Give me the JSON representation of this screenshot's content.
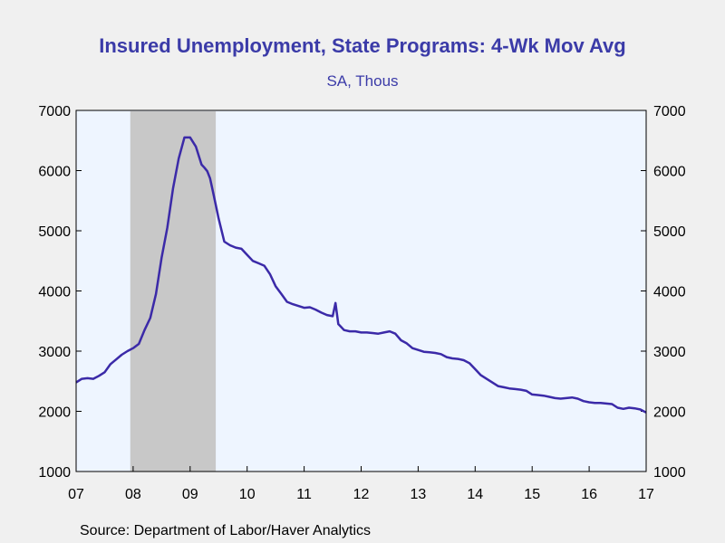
{
  "chart_data": {
    "type": "line",
    "title": "Insured Unemployment, State Programs: 4-Wk Mov Avg",
    "subtitle": "SA, Thous",
    "source": "Source:  Department of Labor/Haver Analytics",
    "x_ticks": [
      "07",
      "08",
      "09",
      "10",
      "11",
      "12",
      "13",
      "14",
      "15",
      "16",
      "17"
    ],
    "y_ticks": [
      "1000",
      "2000",
      "3000",
      "4000",
      "5000",
      "6000",
      "7000"
    ],
    "xlim": [
      2007.0,
      2017.0
    ],
    "ylim": [
      1000,
      7000
    ],
    "recession": [
      2007.95,
      2009.45
    ],
    "colors": {
      "line": "#3b2aa8",
      "plot_bg": "#eef5ff",
      "recession": "#c8c8c8",
      "text": "#3b3ba8"
    },
    "series": [
      {
        "x": [
          2007.0,
          2007.1,
          2007.2,
          2007.3,
          2007.4,
          2007.5,
          2007.6,
          2007.7,
          2007.8,
          2007.9,
          2008.0,
          2008.1,
          2008.2,
          2008.3,
          2008.4,
          2008.5,
          2008.6,
          2008.7,
          2008.8,
          2008.9,
          2009.0,
          2009.1,
          2009.2,
          2009.25,
          2009.3,
          2009.35,
          2009.4,
          2009.5,
          2009.6,
          2009.7,
          2009.8,
          2009.9,
          2010.0,
          2010.1,
          2010.2,
          2010.3,
          2010.4,
          2010.5,
          2010.6,
          2010.7,
          2010.8,
          2010.9,
          2011.0,
          2011.1,
          2011.2,
          2011.3,
          2011.4,
          2011.5,
          2011.55,
          2011.6,
          2011.62,
          2011.65,
          2011.7,
          2011.8,
          2011.9,
          2012.0,
          2012.1,
          2012.2,
          2012.3,
          2012.4,
          2012.5,
          2012.6,
          2012.7,
          2012.8,
          2012.9,
          2013.0,
          2013.1,
          2013.2,
          2013.3,
          2013.4,
          2013.5,
          2013.6,
          2013.7,
          2013.8,
          2013.9,
          2014.0,
          2014.1,
          2014.2,
          2014.3,
          2014.4,
          2014.5,
          2014.6,
          2014.7,
          2014.8,
          2014.9,
          2015.0,
          2015.1,
          2015.2,
          2015.3,
          2015.4,
          2015.5,
          2015.6,
          2015.7,
          2015.8,
          2015.9,
          2016.0,
          2016.1,
          2016.2,
          2016.3,
          2016.4,
          2016.5,
          2016.6,
          2016.7,
          2016.8,
          2016.9,
          2017.0
        ],
        "values": [
          2480,
          2540,
          2550,
          2540,
          2590,
          2650,
          2780,
          2860,
          2940,
          3000,
          3050,
          3120,
          3350,
          3550,
          3950,
          4550,
          5050,
          5700,
          6200,
          6550,
          6550,
          6400,
          6100,
          6050,
          5990,
          5870,
          5650,
          5200,
          4820,
          4760,
          4720,
          4700,
          4600,
          4500,
          4460,
          4420,
          4280,
          4080,
          3950,
          3820,
          3780,
          3750,
          3720,
          3730,
          3690,
          3640,
          3600,
          3580,
          3800,
          3450,
          3430,
          3400,
          3350,
          3330,
          3330,
          3310,
          3310,
          3300,
          3290,
          3310,
          3330,
          3290,
          3180,
          3130,
          3050,
          3020,
          2990,
          2980,
          2970,
          2950,
          2900,
          2880,
          2870,
          2850,
          2800,
          2700,
          2600,
          2540,
          2480,
          2420,
          2400,
          2380,
          2370,
          2360,
          2340,
          2280,
          2270,
          2260,
          2240,
          2220,
          2210,
          2220,
          2230,
          2210,
          2170,
          2150,
          2140,
          2140,
          2130,
          2120,
          2060,
          2040,
          2060,
          2050,
          2030,
          1980
        ]
      }
    ]
  }
}
